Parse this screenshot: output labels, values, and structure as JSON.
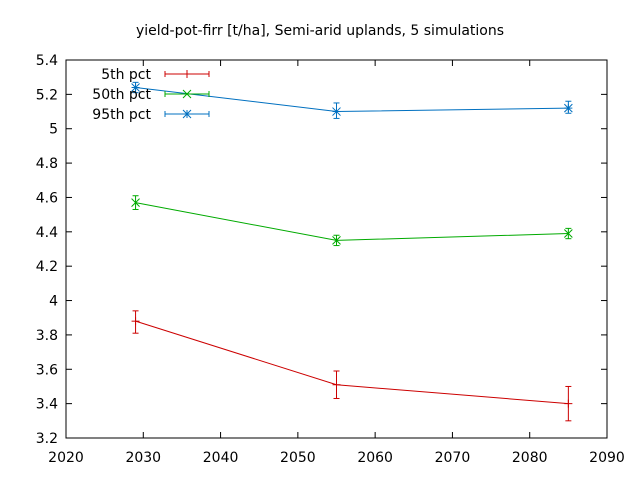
{
  "chart_data": {
    "type": "line",
    "title": "yield-pot-firr [t/ha], Semi-arid uplands, 5 simulations",
    "xlabel": "",
    "ylabel": "",
    "xlim": [
      2020,
      2090
    ],
    "ylim": [
      3.2,
      5.4
    ],
    "xticks": [
      2020,
      2030,
      2040,
      2050,
      2060,
      2070,
      2080,
      2090
    ],
    "yticks": [
      3.2,
      3.4,
      3.6,
      3.8,
      4,
      4.2,
      4.4,
      4.6,
      4.8,
      5,
      5.2,
      5.4
    ],
    "legend_position": "top-left",
    "grid": false,
    "error_bars": true,
    "x": [
      2029,
      2055,
      2085
    ],
    "series": [
      {
        "name": "5th pct",
        "color": "#cc0000",
        "marker": "plus",
        "values": [
          3.88,
          3.51,
          3.4
        ],
        "err_low": [
          3.81,
          3.43,
          3.3
        ],
        "err_high": [
          3.94,
          3.59,
          3.5
        ]
      },
      {
        "name": "50th pct",
        "color": "#00aa00",
        "marker": "cross",
        "values": [
          4.57,
          4.35,
          4.39
        ],
        "err_low": [
          4.53,
          4.32,
          4.36
        ],
        "err_high": [
          4.61,
          4.38,
          4.42
        ]
      },
      {
        "name": "95th pct",
        "color": "#0070c0",
        "marker": "star",
        "values": [
          5.24,
          5.1,
          5.12
        ],
        "err_low": [
          5.21,
          5.06,
          5.09
        ],
        "err_high": [
          5.27,
          5.15,
          5.16
        ]
      }
    ]
  }
}
